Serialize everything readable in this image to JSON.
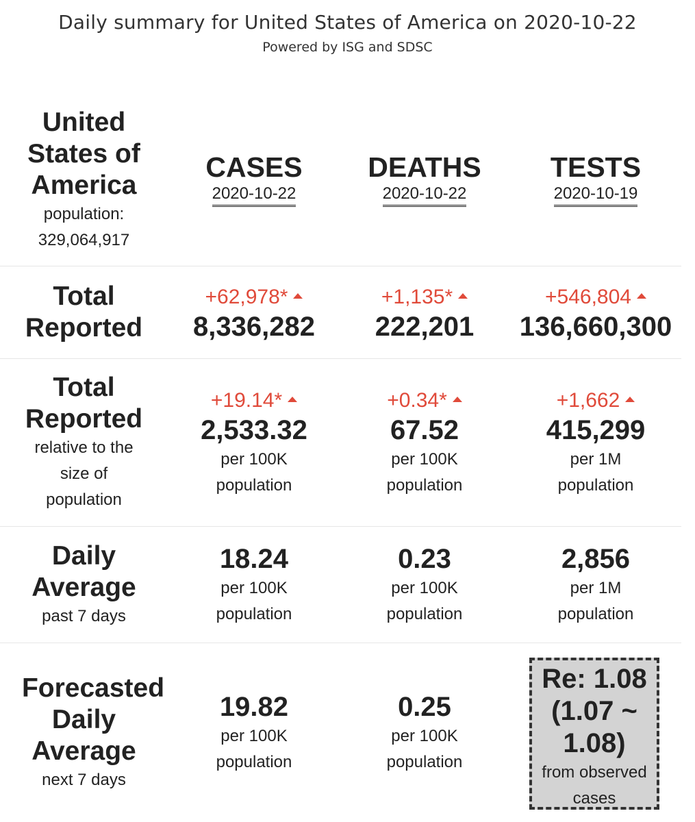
{
  "header": {
    "title": "Daily summary for United States of America on 2020-10-22",
    "subtitle": "Powered by ISG and SDSC"
  },
  "region": {
    "name_lines": [
      "United",
      "States of",
      "America"
    ],
    "population_label": "population:",
    "population_value": "329,064,917"
  },
  "columns": [
    {
      "label": "CASES",
      "date": "2020-10-22"
    },
    {
      "label": "DEATHS",
      "date": "2020-10-22"
    },
    {
      "label": "TESTS",
      "date": "2020-10-19"
    }
  ],
  "rows": {
    "total_reported": {
      "label_lines": [
        "Total",
        "Reported"
      ],
      "cells": [
        {
          "delta": "+62,978*",
          "value": "8,336,282"
        },
        {
          "delta": "+1,135*",
          "value": "222,201"
        },
        {
          "delta": "+546,804",
          "value": "136,660,300"
        }
      ]
    },
    "relative": {
      "label_lines": [
        "Total",
        "Reported"
      ],
      "sub_lines": [
        "relative to the",
        "size of",
        "population"
      ],
      "cells": [
        {
          "delta": "+19.14*",
          "value": "2,533.32",
          "unit_lines": [
            "per 100K",
            "population"
          ]
        },
        {
          "delta": "+0.34*",
          "value": "67.52",
          "unit_lines": [
            "per 100K",
            "population"
          ]
        },
        {
          "delta": "+1,662",
          "value": "415,299",
          "unit_lines": [
            "per 1M",
            "population"
          ]
        }
      ]
    },
    "daily_average": {
      "label_lines": [
        "Daily",
        "Average"
      ],
      "sub_lines": [
        "past 7 days"
      ],
      "cells": [
        {
          "value": "18.24",
          "unit_lines": [
            "per 100K",
            "population"
          ]
        },
        {
          "value": "0.23",
          "unit_lines": [
            "per 100K",
            "population"
          ]
        },
        {
          "value": "2,856",
          "unit_lines": [
            "per 1M",
            "population"
          ]
        }
      ]
    },
    "forecast": {
      "label_lines": [
        "Forecasted",
        "Daily",
        "Average"
      ],
      "sub_lines": [
        "next 7 days"
      ],
      "cells": [
        {
          "value": "19.82",
          "unit_lines": [
            "per 100K",
            "population"
          ]
        },
        {
          "value": "0.25",
          "unit_lines": [
            "per 100K",
            "population"
          ]
        }
      ],
      "re": {
        "lines": [
          "Re: 1.08",
          "(1.07 ~",
          "1.08)"
        ],
        "sub_lines": [
          "from observed",
          "cases"
        ]
      }
    }
  },
  "colors": {
    "increase": "#e04a3a",
    "re_box_background": "#d3d3d3",
    "text": "#222222"
  },
  "icons": {
    "increase_indicator": "triangle-up-icon"
  }
}
